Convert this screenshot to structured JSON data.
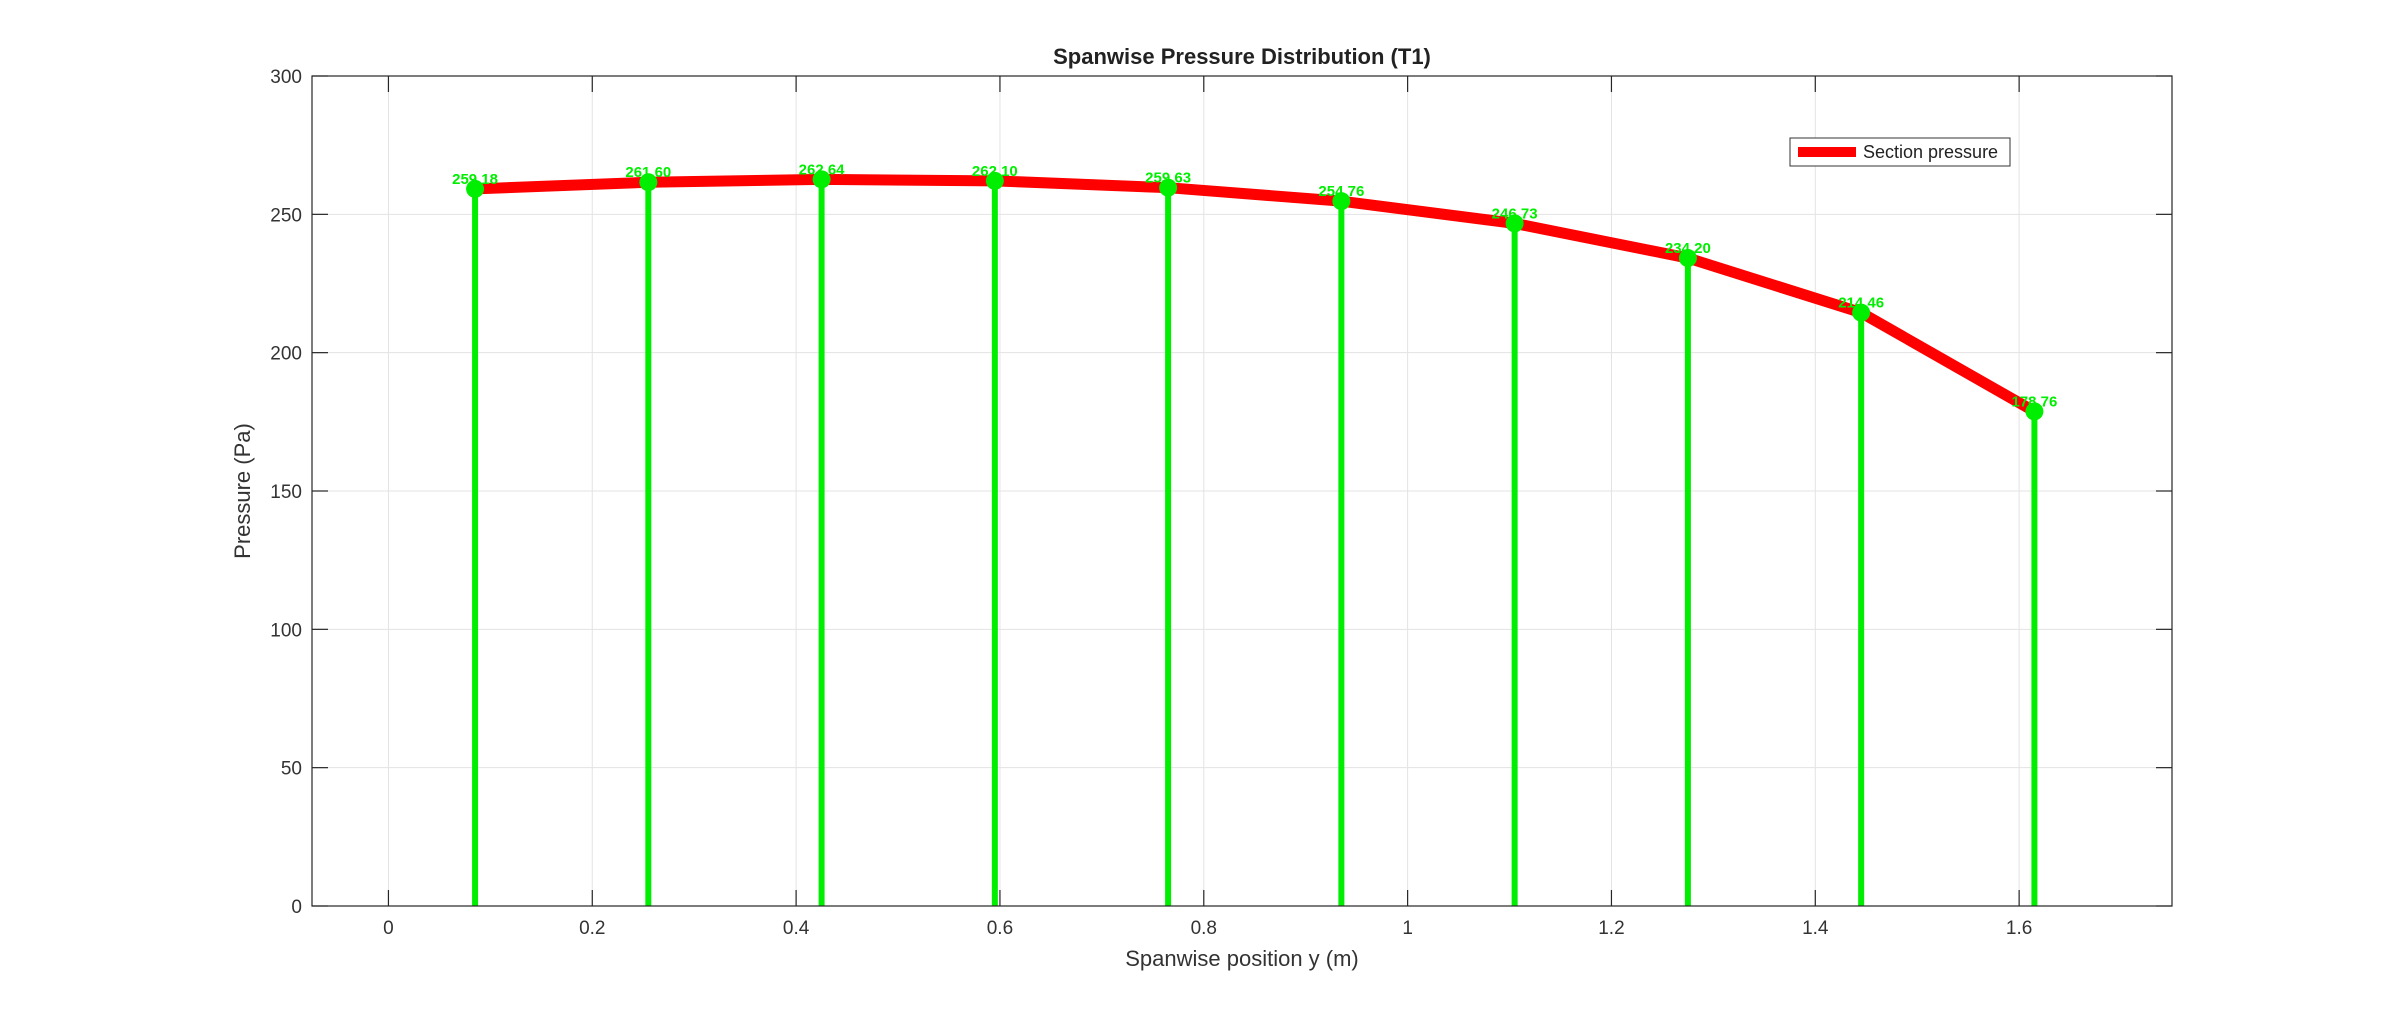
{
  "chart_data": {
    "type": "line",
    "title": "Spanwise Pressure Distribution (T1)",
    "xlabel": "Spanwise position y (m)",
    "ylabel": "Pressure (Pa)",
    "xlim": [
      -0.075,
      1.75
    ],
    "ylim": [
      0,
      300
    ],
    "xticks": [
      0,
      0.2,
      0.4,
      0.6,
      0.8,
      1,
      1.2,
      1.4,
      1.6
    ],
    "xtick_labels": [
      "0",
      "0.2",
      "0.4",
      "0.6",
      "0.8",
      "1",
      "1.2",
      "1.4",
      "1.6"
    ],
    "yticks": [
      0,
      50,
      100,
      150,
      200,
      250,
      300
    ],
    "ytick_labels": [
      "0",
      "50",
      "100",
      "150",
      "200",
      "250",
      "300"
    ],
    "grid": true,
    "legend_position": "top-right",
    "series": [
      {
        "name": "Section pressure",
        "color": "#ff0000",
        "x": [
          0.085,
          0.255,
          0.425,
          0.595,
          0.765,
          0.935,
          1.105,
          1.275,
          1.445,
          1.615
        ],
        "y": [
          259.18,
          261.6,
          262.64,
          262.1,
          259.63,
          254.76,
          246.73,
          234.2,
          214.46,
          178.76
        ]
      }
    ],
    "stems": {
      "color": "#00ee00",
      "x": [
        0.085,
        0.255,
        0.425,
        0.595,
        0.765,
        0.935,
        1.105,
        1.275,
        1.445,
        1.615
      ],
      "y": [
        259.18,
        261.6,
        262.64,
        262.1,
        259.63,
        254.76,
        246.73,
        234.2,
        214.46,
        178.76
      ],
      "labels": [
        "259.18",
        "261.60",
        "262.64",
        "262.10",
        "259.63",
        "254.76",
        "246.73",
        "234.20",
        "214.46",
        "178.76"
      ]
    }
  }
}
